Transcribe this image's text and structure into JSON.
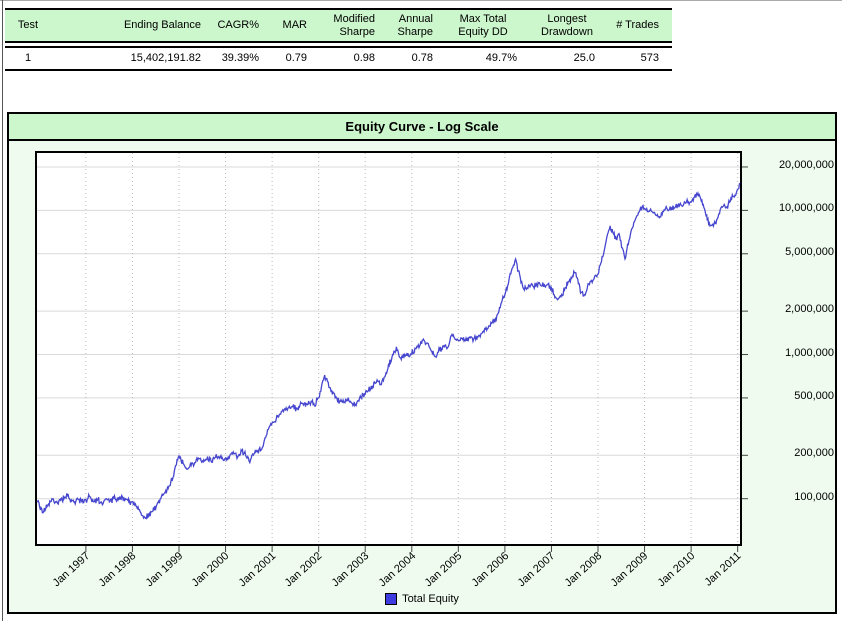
{
  "table": {
    "columns": [
      {
        "label": "Test"
      },
      {
        "label": "Ending Balance"
      },
      {
        "label": "CAGR%"
      },
      {
        "label": "MAR"
      },
      {
        "label": "Modified Sharpe"
      },
      {
        "label": "Annual Sharpe"
      },
      {
        "label": "Max Total Equity DD"
      },
      {
        "label": "Longest Drawdown"
      },
      {
        "label": "# Trades"
      }
    ],
    "rows": [
      [
        "1",
        "15,402,191.82",
        "39.39%",
        "0.79",
        "0.98",
        "0.78",
        "49.7%",
        "25.0",
        "573"
      ]
    ]
  },
  "chart": {
    "title": "Equity Curve - Log Scale",
    "legend": [
      {
        "label": "Total Equity",
        "color": "#3c3ce0"
      }
    ]
  },
  "colors": {
    "header_green": "#ccf6cc",
    "panel_bg": "#effbef",
    "line": "#4646cf",
    "grid_h": "#d9d9d9",
    "grid_v": "#b8b8b8"
  },
  "chart_data": {
    "type": "line",
    "title": "Equity Curve - Log Scale",
    "xlabel": "",
    "ylabel": "",
    "y_scale": "log",
    "y_axis_side": "right",
    "legend_position": "bottom",
    "grid": true,
    "x_range": [
      1995.95,
      2011.05
    ],
    "y_range": [
      48500,
      25000000
    ],
    "y_ticks": [
      {
        "label": "20,000,000",
        "value": 20000000
      },
      {
        "label": "10,000,000",
        "value": 10000000
      },
      {
        "label": "5,000,000",
        "value": 5000000
      },
      {
        "label": "2,000,000",
        "value": 2000000
      },
      {
        "label": "1,000,000",
        "value": 1000000
      },
      {
        "label": "500,000",
        "value": 500000
      },
      {
        "label": "200,000",
        "value": 200000
      },
      {
        "label": "100,000",
        "value": 100000
      }
    ],
    "x_ticks": [
      {
        "label": "Jan 1997",
        "year": 1997
      },
      {
        "label": "Jan 1998",
        "year": 1998
      },
      {
        "label": "Jan 1999",
        "year": 1999
      },
      {
        "label": "Jan 2000",
        "year": 2000
      },
      {
        "label": "Jan 2001",
        "year": 2001
      },
      {
        "label": "Jan 2002",
        "year": 2002
      },
      {
        "label": "Jan 2003",
        "year": 2003
      },
      {
        "label": "Jan 2004",
        "year": 2004
      },
      {
        "label": "Jan 2005",
        "year": 2005
      },
      {
        "label": "Jan 2006",
        "year": 2006
      },
      {
        "label": "Jan 2007",
        "year": 2007
      },
      {
        "label": "Jan 2008",
        "year": 2008
      },
      {
        "label": "Jan 2009",
        "year": 2009
      },
      {
        "label": "Jan 2010",
        "year": 2010
      },
      {
        "label": "Jan 2011",
        "year": 2011
      }
    ],
    "series": [
      {
        "name": "Total Equity",
        "color": "#4646cf",
        "points": [
          [
            1995.95,
            97000
          ],
          [
            1996.08,
            80000
          ],
          [
            1996.18,
            90000
          ],
          [
            1996.27,
            100000
          ],
          [
            1996.33,
            93000
          ],
          [
            1996.42,
            97000
          ],
          [
            1996.53,
            100000
          ],
          [
            1996.59,
            109000
          ],
          [
            1996.66,
            98000
          ],
          [
            1996.74,
            95000
          ],
          [
            1996.83,
            99000
          ],
          [
            1996.91,
            96000
          ],
          [
            1997.0,
            98000
          ],
          [
            1997.09,
            103000
          ],
          [
            1997.17,
            95000
          ],
          [
            1997.26,
            99000
          ],
          [
            1997.34,
            94000
          ],
          [
            1997.43,
            100000
          ],
          [
            1997.52,
            96000
          ],
          [
            1997.6,
            101000
          ],
          [
            1997.69,
            98000
          ],
          [
            1997.77,
            105000
          ],
          [
            1997.86,
            99000
          ],
          [
            1997.94,
            96000
          ],
          [
            1998.01,
            95000
          ],
          [
            1998.09,
            88000
          ],
          [
            1998.18,
            80000
          ],
          [
            1998.27,
            74000
          ],
          [
            1998.35,
            76000
          ],
          [
            1998.44,
            82000
          ],
          [
            1998.52,
            90000
          ],
          [
            1998.61,
            100000
          ],
          [
            1998.7,
            110000
          ],
          [
            1998.78,
            122000
          ],
          [
            1998.87,
            140000
          ],
          [
            1998.93,
            170000
          ],
          [
            1999.0,
            198000
          ],
          [
            1999.09,
            175000
          ],
          [
            1999.17,
            160000
          ],
          [
            1999.26,
            170000
          ],
          [
            1999.34,
            178000
          ],
          [
            1999.43,
            190000
          ],
          [
            1999.52,
            180000
          ],
          [
            1999.6,
            188000
          ],
          [
            1999.69,
            182000
          ],
          [
            1999.77,
            192000
          ],
          [
            1999.86,
            195000
          ],
          [
            1999.94,
            188000
          ],
          [
            2000.0,
            192000
          ],
          [
            2000.09,
            198000
          ],
          [
            2000.18,
            205000
          ],
          [
            2000.26,
            195000
          ],
          [
            2000.35,
            215000
          ],
          [
            2000.43,
            200000
          ],
          [
            2000.52,
            178000
          ],
          [
            2000.61,
            205000
          ],
          [
            2000.69,
            215000
          ],
          [
            2000.78,
            222000
          ],
          [
            2000.86,
            265000
          ],
          [
            2000.93,
            310000
          ],
          [
            2001.0,
            335000
          ],
          [
            2001.09,
            360000
          ],
          [
            2001.17,
            385000
          ],
          [
            2001.26,
            415000
          ],
          [
            2001.34,
            425000
          ],
          [
            2001.43,
            435000
          ],
          [
            2001.52,
            425000
          ],
          [
            2001.6,
            445000
          ],
          [
            2001.69,
            460000
          ],
          [
            2001.77,
            450000
          ],
          [
            2001.85,
            470000
          ],
          [
            2001.91,
            440000
          ],
          [
            2002.0,
            500000
          ],
          [
            2002.06,
            600000
          ],
          [
            2002.13,
            720000
          ],
          [
            2002.19,
            650000
          ],
          [
            2002.28,
            560000
          ],
          [
            2002.37,
            510000
          ],
          [
            2002.45,
            475000
          ],
          [
            2002.54,
            465000
          ],
          [
            2002.62,
            480000
          ],
          [
            2002.71,
            460000
          ],
          [
            2002.79,
            450000
          ],
          [
            2002.88,
            500000
          ],
          [
            2003.0,
            530000
          ],
          [
            2003.07,
            560000
          ],
          [
            2003.16,
            600000
          ],
          [
            2003.24,
            640000
          ],
          [
            2003.33,
            620000
          ],
          [
            2003.42,
            700000
          ],
          [
            2003.5,
            850000
          ],
          [
            2003.59,
            1000000
          ],
          [
            2003.67,
            1130000
          ],
          [
            2003.76,
            950000
          ],
          [
            2003.85,
            1000000
          ],
          [
            2003.93,
            980000
          ],
          [
            2004.0,
            1020000
          ],
          [
            2004.08,
            1100000
          ],
          [
            2004.17,
            1150000
          ],
          [
            2004.25,
            1280000
          ],
          [
            2004.34,
            1200000
          ],
          [
            2004.43,
            1050000
          ],
          [
            2004.51,
            970000
          ],
          [
            2004.6,
            1080000
          ],
          [
            2004.68,
            1150000
          ],
          [
            2004.77,
            1120000
          ],
          [
            2004.85,
            1350000
          ],
          [
            2004.92,
            1300000
          ],
          [
            2005.0,
            1250000
          ],
          [
            2005.07,
            1300000
          ],
          [
            2005.15,
            1250000
          ],
          [
            2005.24,
            1320000
          ],
          [
            2005.33,
            1280000
          ],
          [
            2005.41,
            1330000
          ],
          [
            2005.5,
            1400000
          ],
          [
            2005.58,
            1500000
          ],
          [
            2005.67,
            1580000
          ],
          [
            2005.76,
            1680000
          ],
          [
            2005.84,
            1900000
          ],
          [
            2005.93,
            2300000
          ],
          [
            2006.0,
            2600000
          ],
          [
            2006.06,
            3000000
          ],
          [
            2006.14,
            3800000
          ],
          [
            2006.23,
            4600000
          ],
          [
            2006.29,
            3800000
          ],
          [
            2006.36,
            3200000
          ],
          [
            2006.42,
            2800000
          ],
          [
            2006.48,
            2900000
          ],
          [
            2006.57,
            3100000
          ],
          [
            2006.66,
            3000000
          ],
          [
            2006.74,
            3150000
          ],
          [
            2006.83,
            2950000
          ],
          [
            2006.91,
            3050000
          ],
          [
            2007.0,
            2900000
          ],
          [
            2007.06,
            2600000
          ],
          [
            2007.13,
            2400000
          ],
          [
            2007.19,
            2550000
          ],
          [
            2007.28,
            2800000
          ],
          [
            2007.36,
            3200000
          ],
          [
            2007.45,
            3500000
          ],
          [
            2007.51,
            3700000
          ],
          [
            2007.58,
            3100000
          ],
          [
            2007.64,
            2700000
          ],
          [
            2007.71,
            2600000
          ],
          [
            2007.77,
            2900000
          ],
          [
            2007.83,
            3200000
          ],
          [
            2007.92,
            3400000
          ],
          [
            2008.0,
            3600000
          ],
          [
            2008.06,
            4300000
          ],
          [
            2008.13,
            5200000
          ],
          [
            2008.19,
            6500000
          ],
          [
            2008.26,
            7800000
          ],
          [
            2008.32,
            7000000
          ],
          [
            2008.39,
            6300000
          ],
          [
            2008.45,
            6900000
          ],
          [
            2008.52,
            5500000
          ],
          [
            2008.58,
            4600000
          ],
          [
            2008.65,
            5800000
          ],
          [
            2008.71,
            7200000
          ],
          [
            2008.77,
            8300000
          ],
          [
            2008.84,
            9200000
          ],
          [
            2008.9,
            10000000
          ],
          [
            2008.95,
            10600000
          ],
          [
            2009.0,
            10300000
          ],
          [
            2009.06,
            9800000
          ],
          [
            2009.13,
            10200000
          ],
          [
            2009.19,
            9600000
          ],
          [
            2009.26,
            9200000
          ],
          [
            2009.32,
            8900000
          ],
          [
            2009.39,
            9800000
          ],
          [
            2009.45,
            10300000
          ],
          [
            2009.52,
            10000000
          ],
          [
            2009.58,
            10500000
          ],
          [
            2009.64,
            10400000
          ],
          [
            2009.71,
            10800000
          ],
          [
            2009.77,
            11200000
          ],
          [
            2009.84,
            11000000
          ],
          [
            2009.9,
            11500000
          ],
          [
            2009.97,
            11300000
          ],
          [
            2010.0,
            11400000
          ],
          [
            2010.06,
            12300000
          ],
          [
            2010.13,
            12800000
          ],
          [
            2010.19,
            12400000
          ],
          [
            2010.26,
            11000000
          ],
          [
            2010.32,
            9200000
          ],
          [
            2010.39,
            8200000
          ],
          [
            2010.45,
            7900000
          ],
          [
            2010.52,
            8100000
          ],
          [
            2010.58,
            9000000
          ],
          [
            2010.64,
            10400000
          ],
          [
            2010.71,
            11000000
          ],
          [
            2010.77,
            10600000
          ],
          [
            2010.84,
            11500000
          ],
          [
            2010.9,
            12500000
          ],
          [
            2010.97,
            13200000
          ],
          [
            2011.01,
            14100000
          ],
          [
            2011.05,
            15400000
          ]
        ]
      }
    ]
  }
}
